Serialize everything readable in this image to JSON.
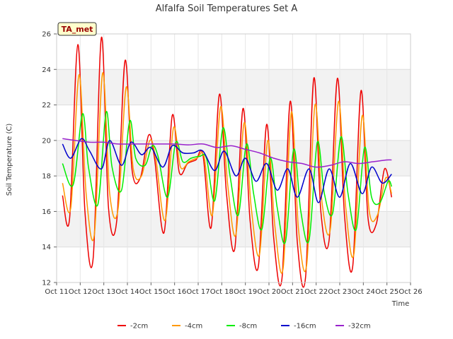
{
  "chart_data": {
    "type": "line",
    "title": "Alfalfa Soil Temperatures Set A",
    "xlabel": "Time",
    "ylabel": "Soil Temperature (C)",
    "badge": "TA_met",
    "xlim": [
      11,
      26
    ],
    "ylim": [
      12,
      26
    ],
    "x_ticks": [
      11,
      12,
      13,
      14,
      15,
      16,
      17,
      18,
      19,
      20,
      21,
      22,
      23,
      24,
      25,
      26
    ],
    "x_tick_labels": [
      "Oct 11",
      "Oct 12",
      "Oct 13",
      "Oct 14",
      "Oct 15",
      "Oct 16",
      "Oct 17",
      "Oct 18",
      "Oct 19",
      "Oct 20",
      "Oct 21",
      "Oct 22",
      "Oct 23",
      "Oct 24",
      "Oct 25",
      "Oct 26"
    ],
    "y_ticks": [
      12,
      14,
      16,
      18,
      20,
      22,
      24,
      26
    ],
    "grid": true,
    "banded_background": true,
    "legend_position": "bottom",
    "series": [
      {
        "name": "-2cm",
        "color": "#ee0000",
        "x": [
          11.25,
          11.55,
          11.9,
          12.2,
          12.55,
          12.9,
          13.2,
          13.55,
          13.9,
          14.2,
          14.55,
          14.9,
          15.15,
          15.55,
          15.9,
          16.2,
          16.55,
          16.9,
          17.2,
          17.55,
          17.9,
          18.2,
          18.55,
          18.9,
          19.2,
          19.55,
          19.9,
          20.2,
          20.55,
          20.9,
          21.2,
          21.55,
          21.9,
          22.2,
          22.55,
          22.9,
          23.2,
          23.55,
          23.9,
          24.2,
          24.55,
          24.9,
          25.2
        ],
        "y": [
          16.9,
          15.6,
          25.4,
          16.0,
          13.4,
          25.8,
          16.2,
          15.5,
          24.5,
          18.3,
          17.9,
          20.3,
          19.0,
          14.8,
          21.4,
          18.2,
          18.7,
          18.9,
          19.2,
          15.1,
          22.6,
          17.0,
          13.9,
          21.8,
          15.5,
          12.9,
          20.9,
          14.5,
          12.2,
          22.2,
          14.3,
          12.3,
          23.5,
          16.0,
          14.4,
          23.5,
          15.8,
          12.9,
          22.8,
          15.6,
          15.3,
          18.4,
          16.8
        ]
      },
      {
        "name": "-4cm",
        "color": "#ff9900",
        "x": [
          11.25,
          11.6,
          11.95,
          12.25,
          12.6,
          12.95,
          13.25,
          13.6,
          13.95,
          14.25,
          14.6,
          14.95,
          15.2,
          15.6,
          15.95,
          16.25,
          16.6,
          16.95,
          17.25,
          17.6,
          17.95,
          18.25,
          18.6,
          18.95,
          19.25,
          19.6,
          19.95,
          20.25,
          20.6,
          20.95,
          21.25,
          21.6,
          21.95,
          22.25,
          22.6,
          22.95,
          23.25,
          23.6,
          23.95,
          24.25,
          24.6,
          24.95,
          25.2
        ],
        "y": [
          17.6,
          16.2,
          23.7,
          17.0,
          14.7,
          23.8,
          17.0,
          16.1,
          23.0,
          18.4,
          18.0,
          20.0,
          19.0,
          15.5,
          20.7,
          18.5,
          18.8,
          19.0,
          19.1,
          15.8,
          21.9,
          17.5,
          14.7,
          21.0,
          16.2,
          13.6,
          20.0,
          15.2,
          12.8,
          21.6,
          15.0,
          13.0,
          22.0,
          16.5,
          15.0,
          22.2,
          16.3,
          13.6,
          21.4,
          16.0,
          15.8,
          17.9,
          17.0
        ]
      },
      {
        "name": "-8cm",
        "color": "#00ee00",
        "x": [
          11.25,
          11.7,
          12.1,
          12.35,
          12.75,
          13.1,
          13.35,
          13.75,
          14.1,
          14.35,
          14.75,
          15.05,
          15.3,
          15.7,
          16.05,
          16.35,
          16.7,
          17.05,
          17.35,
          17.7,
          18.05,
          18.35,
          18.7,
          19.05,
          19.35,
          19.7,
          20.05,
          20.35,
          20.7,
          21.05,
          21.35,
          21.7,
          22.05,
          22.35,
          22.7,
          23.05,
          23.35,
          23.7,
          24.05,
          24.35,
          24.7,
          25.05,
          25.2
        ],
        "y": [
          18.7,
          17.5,
          21.5,
          18.5,
          16.4,
          21.6,
          18.5,
          17.2,
          21.1,
          19.0,
          18.6,
          19.7,
          19.1,
          16.8,
          19.9,
          18.8,
          19.0,
          19.1,
          19.0,
          16.6,
          20.7,
          18.0,
          15.8,
          19.8,
          17.0,
          15.0,
          19.0,
          16.2,
          14.3,
          19.5,
          16.0,
          14.4,
          19.9,
          17.0,
          15.9,
          20.2,
          17.0,
          15.0,
          19.6,
          16.8,
          16.5,
          17.7,
          17.4
        ]
      },
      {
        "name": "-16cm",
        "color": "#0000cc",
        "x": [
          11.25,
          11.6,
          12.05,
          12.4,
          12.9,
          13.25,
          13.75,
          14.15,
          14.6,
          15.0,
          15.5,
          15.9,
          16.35,
          16.8,
          17.2,
          17.7,
          18.1,
          18.6,
          19.0,
          19.45,
          19.9,
          20.35,
          20.8,
          21.2,
          21.7,
          22.1,
          22.55,
          23.0,
          23.45,
          23.95,
          24.35,
          24.8,
          25.2
        ],
        "y": [
          19.8,
          19.0,
          20.1,
          19.4,
          18.4,
          20.0,
          18.6,
          19.9,
          19.2,
          19.6,
          18.5,
          19.7,
          19.3,
          19.3,
          19.4,
          18.3,
          19.4,
          18.0,
          19.0,
          17.7,
          18.7,
          17.2,
          18.4,
          16.8,
          18.4,
          16.5,
          18.4,
          16.8,
          18.7,
          17.0,
          18.5,
          17.6,
          18.1
        ]
      },
      {
        "name": "-32cm",
        "color": "#9922cc",
        "x": [
          11.25,
          11.8,
          12.4,
          13.0,
          13.6,
          14.2,
          14.8,
          15.4,
          16.0,
          16.6,
          17.2,
          17.8,
          18.4,
          19.0,
          19.6,
          20.2,
          20.8,
          21.4,
          22.0,
          22.6,
          23.2,
          23.8,
          24.4,
          25.0,
          25.2
        ],
        "y": [
          20.1,
          20.0,
          19.9,
          19.9,
          19.8,
          19.8,
          19.8,
          19.8,
          19.8,
          19.75,
          19.8,
          19.6,
          19.7,
          19.5,
          19.3,
          19.0,
          18.8,
          18.7,
          18.5,
          18.6,
          18.8,
          18.7,
          18.8,
          18.9,
          18.9
        ]
      }
    ]
  }
}
